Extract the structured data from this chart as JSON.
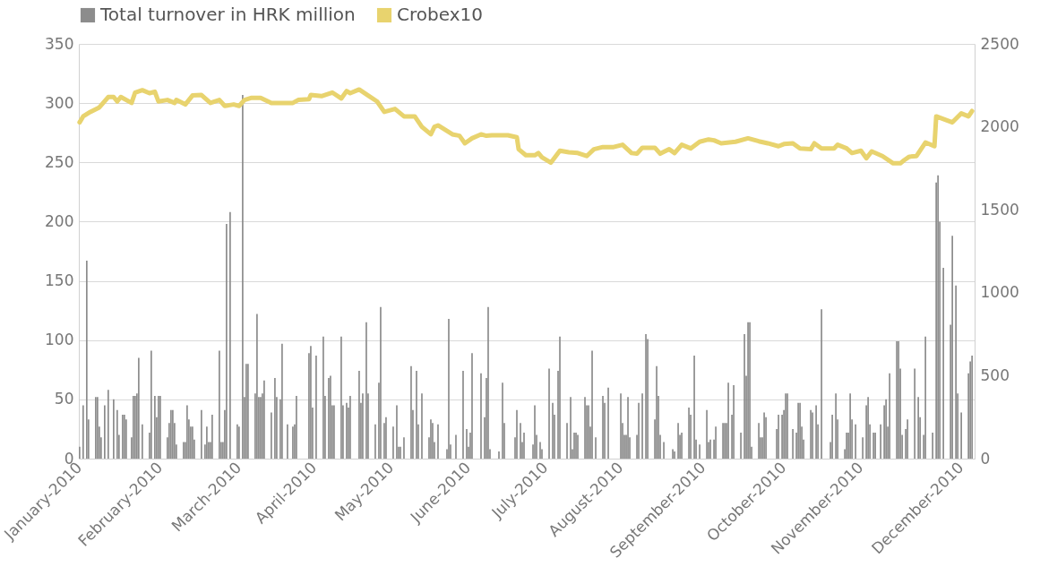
{
  "chart_data": {
    "type": "bar",
    "categories": [
      "January-2010",
      null,
      null,
      null,
      null,
      null,
      null,
      null,
      null,
      null,
      null,
      null,
      null,
      null,
      null,
      null,
      null,
      null,
      null,
      null,
      null,
      null,
      null,
      null,
      null,
      null,
      null,
      null,
      null,
      null,
      null,
      null,
      null,
      null,
      null,
      null,
      null,
      null,
      null,
      null,
      null,
      null,
      null,
      null,
      null,
      "February-2010",
      null,
      null,
      null,
      null,
      null,
      null,
      null,
      null,
      null,
      null,
      null,
      null,
      null,
      null,
      null,
      null,
      null,
      null,
      null,
      null,
      null,
      null,
      null,
      null,
      null,
      null,
      null,
      null,
      null,
      null,
      null,
      null,
      null,
      null,
      null,
      null,
      null,
      null,
      null,
      null,
      null,
      null,
      null,
      "March-2010",
      null,
      null,
      null,
      null,
      null,
      null,
      null,
      null,
      null,
      null,
      null,
      null,
      null,
      null,
      null,
      null,
      null,
      null,
      null,
      null,
      null,
      null,
      null,
      null,
      null,
      null,
      null,
      null,
      null,
      null,
      null,
      null,
      null,
      null,
      null,
      null,
      null,
      null,
      null,
      null,
      null,
      "April-2010",
      null,
      null,
      null,
      null,
      null,
      null,
      null,
      null,
      null,
      null,
      null,
      null,
      null,
      null,
      null,
      null,
      null,
      null,
      null,
      null,
      null,
      null,
      null,
      null,
      null,
      null,
      null,
      null,
      null,
      null,
      null,
      null,
      null,
      null,
      null,
      null,
      null,
      null,
      null,
      null,
      null,
      null,
      "May-2010",
      null,
      null,
      null,
      null,
      null,
      null,
      null,
      null,
      null,
      null,
      null,
      null,
      null,
      null,
      null,
      null,
      null,
      null,
      null,
      null,
      null,
      null,
      null,
      null,
      null,
      null,
      null,
      null,
      null,
      null,
      null,
      null,
      null,
      null,
      null,
      null,
      null,
      null,
      null,
      null,
      null,
      null,
      "June-2010",
      null,
      null,
      null,
      null,
      null,
      null,
      null,
      null,
      null,
      null,
      null,
      null,
      null,
      null,
      null,
      null,
      null,
      null,
      null,
      null,
      null,
      null,
      null,
      null,
      null,
      null,
      null,
      null,
      null,
      null,
      null,
      null,
      null,
      null,
      null,
      null,
      null,
      null,
      null,
      null,
      null,
      null,
      "July-2010",
      null,
      null,
      null,
      null,
      null,
      null,
      null,
      null,
      null,
      null,
      null,
      null,
      null,
      null,
      null,
      null,
      null,
      null,
      null,
      null,
      null,
      null,
      null,
      null,
      null,
      null,
      null,
      null,
      null,
      null,
      null,
      null,
      null,
      null,
      null,
      null,
      null,
      null,
      null,
      null,
      null,
      "August-2010",
      null,
      null,
      null,
      null,
      null,
      null,
      null,
      null,
      null,
      null,
      null,
      null,
      null,
      null,
      null,
      null,
      null,
      null,
      null,
      null,
      null,
      null,
      null,
      null,
      null,
      null,
      null,
      null,
      null,
      null,
      null,
      null,
      null,
      null,
      null,
      null,
      null,
      null,
      null,
      null,
      null,
      null,
      null,
      null,
      null,
      "September-2010",
      null,
      null,
      null,
      null,
      null,
      null,
      null,
      null,
      null,
      null,
      null,
      null,
      null,
      null,
      null,
      null,
      null,
      null,
      null,
      null,
      null,
      null,
      null,
      null,
      null,
      null,
      null,
      null,
      null,
      null,
      null,
      null,
      null,
      null,
      null,
      null,
      null,
      null,
      null,
      null,
      null,
      null,
      null,
      null,
      "October-2010",
      null,
      null,
      null,
      null,
      null,
      null,
      null,
      null,
      null,
      null,
      null,
      null,
      null,
      null,
      null,
      null,
      null,
      null,
      null,
      null,
      null,
      null,
      null,
      null,
      null,
      null,
      null,
      null,
      null,
      null,
      null,
      null,
      null,
      null,
      null,
      null,
      null,
      null,
      null,
      null,
      null,
      null,
      "November-2010",
      null,
      null,
      null,
      null,
      null,
      null,
      null,
      null,
      null,
      null,
      null,
      null,
      null,
      null,
      null,
      null,
      null,
      null,
      null,
      null,
      null,
      null,
      null,
      null,
      null,
      null,
      null,
      null,
      null,
      null,
      null,
      null,
      null,
      null,
      null,
      null,
      null,
      null,
      null,
      null,
      null,
      null,
      null,
      null,
      null,
      null,
      null,
      null,
      null,
      null,
      null,
      null,
      null,
      null,
      null,
      "December-2010",
      null,
      null,
      null,
      null,
      null,
      null,
      null
    ],
    "ylim": [
      0,
      350
    ],
    "yticks": [
      0,
      50,
      100,
      150,
      200,
      250,
      300,
      350
    ],
    "y2lim": [
      0,
      2500
    ],
    "y2ticks": [
      0,
      500,
      1000,
      1500,
      2000,
      2500
    ],
    "grid": "y",
    "legend": "top left",
    "series": [
      {
        "name": "Total turnover in HRK million",
        "color": "#8c8c8c",
        "values": [
          10,
          null,
          45,
          null,
          167,
          33,
          null,
          null,
          null,
          52,
          52,
          27,
          18,
          null,
          45,
          null,
          58,
          null,
          null,
          50,
          null,
          41,
          20,
          null,
          37,
          37,
          33,
          null,
          null,
          18,
          53,
          53,
          55,
          85,
          null,
          29,
          null,
          null,
          null,
          22,
          91,
          null,
          53,
          35,
          53,
          53,
          null,
          null,
          null,
          18,
          30,
          41,
          41,
          30,
          12,
          null,
          null,
          null,
          14,
          14,
          45,
          33,
          27,
          27,
          16,
          null,
          null,
          null,
          41,
          null,
          12,
          27,
          14,
          14,
          37,
          null,
          null,
          null,
          91,
          14,
          14,
          41,
          198,
          null,
          208,
          null,
          null,
          null,
          29,
          27,
          null,
          307,
          52,
          80,
          80,
          null,
          null,
          null,
          55,
          122,
          52,
          52,
          55,
          66,
          null,
          null,
          null,
          39,
          null,
          68,
          52,
          null,
          50,
          97,
          null,
          null,
          29,
          null,
          null,
          27,
          29,
          53,
          null,
          null,
          null,
          null,
          null,
          null,
          89,
          95,
          43,
          null,
          87,
          null,
          null,
          null,
          103,
          53,
          null,
          68,
          70,
          45,
          45,
          null,
          null,
          null,
          103,
          45,
          null,
          47,
          43,
          53,
          null,
          null,
          null,
          null,
          74,
          47,
          55,
          null,
          115,
          55,
          null,
          null,
          null,
          29,
          null,
          64,
          128,
          null,
          30,
          35,
          null,
          null,
          null,
          27,
          null,
          45,
          10,
          10,
          null,
          18,
          null,
          null,
          null,
          78,
          41,
          null,
          74,
          29,
          null,
          55,
          null,
          null,
          null,
          18,
          33,
          30,
          14,
          null,
          29,
          null,
          null,
          null,
          null,
          8,
          118,
          12,
          null,
          null,
          20,
          null,
          null,
          null,
          74,
          null,
          25,
          10,
          22,
          89,
          null,
          null,
          null,
          null,
          72,
          null,
          35,
          68,
          128,
          8,
          null,
          null,
          null,
          null,
          6,
          null,
          64,
          30,
          null,
          null,
          null,
          null,
          null,
          18,
          41,
          null,
          30,
          14,
          22,
          null,
          null,
          null,
          null,
          12,
          45,
          20,
          null,
          14,
          8,
          null,
          null,
          null,
          76,
          null,
          47,
          37,
          null,
          74,
          103,
          null,
          null,
          null,
          30,
          null,
          52,
          8,
          22,
          22,
          20,
          null,
          null,
          null,
          52,
          45,
          45,
          27,
          91,
          null,
          18,
          null,
          null,
          null,
          53,
          47,
          null,
          60,
          null,
          null,
          null,
          null,
          null,
          null,
          55,
          30,
          20,
          20,
          52,
          18,
          null,
          null,
          null,
          20,
          47,
          null,
          55,
          null,
          105,
          101,
          null,
          null,
          null,
          33,
          78,
          53,
          20,
          null,
          14,
          null,
          null,
          null,
          null,
          8,
          6,
          null,
          30,
          20,
          22,
          null,
          null,
          null,
          43,
          37,
          null,
          87,
          16,
          null,
          12,
          null,
          null,
          null,
          41,
          14,
          16,
          null,
          16,
          27,
          null,
          null,
          null,
          30,
          30,
          30,
          64,
          null,
          37,
          62,
          null,
          null,
          null,
          22,
          null,
          105,
          70,
          115,
          115,
          10,
          null,
          null,
          null,
          30,
          18,
          18,
          39,
          35,
          null,
          null,
          null,
          null,
          null,
          25,
          37,
          null,
          37,
          41,
          55,
          55,
          null,
          null,
          25,
          null,
          22,
          47,
          47,
          27,
          16,
          null,
          null,
          null,
          41,
          39,
          null,
          45,
          29,
          null,
          126,
          null,
          null,
          null,
          null,
          14,
          37,
          null,
          55,
          33,
          null,
          null,
          null,
          8,
          22,
          22,
          55,
          33,
          null,
          29,
          null,
          null,
          null,
          18,
          null,
          45,
          52,
          29,
          null,
          22,
          22,
          null,
          null,
          29,
          null,
          45,
          50,
          27,
          72,
          null,
          null,
          null,
          99,
          99,
          76,
          20,
          null,
          25,
          33,
          null,
          null,
          null,
          76,
          null,
          52,
          35,
          null,
          20,
          103,
          null,
          null,
          null,
          22,
          null,
          233,
          239,
          200,
          null,
          161,
          null,
          null,
          null,
          113,
          188,
          null,
          146,
          55,
          null,
          39,
          null,
          null,
          null,
          72,
          82,
          87,
          null
        ]
      },
      {
        "name": "Crobex10",
        "type": "line",
        "axis": "y2",
        "line_style": "solid",
        "color": "#e8d36e",
        "values": [
          2027,
          null,
          2063,
          null,
          null,
          null,
          2090,
          null,
          null,
          null,
          null,
          2117,
          null,
          null,
          null,
          null,
          2180,
          null,
          null,
          2180,
          null,
          2153,
          null,
          2180,
          null,
          null,
          null,
          null,
          null,
          2144,
          null,
          2207,
          null,
          null,
          null,
          2221,
          null,
          null,
          null,
          2203,
          null,
          null,
          2212,
          null,
          2153,
          null,
          null,
          null,
          null,
          2162,
          null,
          null,
          null,
          2144,
          2162,
          null,
          null,
          null,
          null,
          2135,
          null,
          null,
          null,
          2189,
          null,
          null,
          null,
          null,
          2192,
          null,
          null,
          null,
          null,
          2144,
          null,
          null,
          null,
          null,
          2162,
          null,
          null,
          2126,
          null,
          null,
          null,
          null,
          2135,
          null,
          null,
          2126,
          null,
          null,
          2162,
          null,
          null,
          null,
          2175,
          null,
          null,
          null,
          null,
          2175,
          null,
          null,
          null,
          null,
          null,
          2144,
          null,
          null,
          null,
          2144,
          null,
          null,
          null,
          null,
          null,
          null,
          null,
          2144,
          null,
          null,
          2162,
          null,
          null,
          null,
          null,
          null,
          2167,
          2192,
          null,
          null,
          null,
          null,
          null,
          2185,
          null,
          null,
          null,
          null,
          null,
          2207,
          null,
          null,
          null,
          null,
          2171,
          null,
          null,
          2216,
          null,
          2203,
          null,
          null,
          null,
          null,
          2225,
          null,
          null,
          null,
          null,
          2189,
          null,
          null,
          null,
          null,
          2153,
          null,
          null,
          null,
          2090,
          null,
          null,
          null,
          null,
          null,
          2108,
          null,
          null,
          null,
          null,
          2063,
          null,
          null,
          null,
          null,
          null,
          2063,
          null,
          null,
          null,
          2000,
          null,
          null,
          null,
          null,
          1955,
          null,
          2000,
          null,
          2009,
          null,
          null,
          null,
          1982,
          null,
          null,
          null,
          1955,
          null,
          null,
          null,
          1946,
          null,
          null,
          1901,
          null,
          null,
          null,
          1931,
          null,
          null,
          null,
          null,
          1955,
          null,
          null,
          1946,
          null,
          null,
          1949,
          null,
          null,
          null,
          null,
          null,
          null,
          null,
          null,
          1949,
          null,
          null,
          null,
          null,
          1937,
          1865,
          null,
          null,
          null,
          1829,
          null,
          null,
          null,
          null,
          1829,
          null,
          1842,
          null,
          1816,
          null,
          null,
          null,
          null,
          1784,
          null,
          null,
          null,
          null,
          1856,
          null,
          null,
          null,
          null,
          1847,
          null,
          null,
          null,
          null,
          1842,
          null,
          null,
          null,
          null,
          1824,
          null,
          null,
          null,
          1865,
          null,
          null,
          null,
          null,
          1878,
          null,
          null,
          null,
          null,
          null,
          1878,
          null,
          null,
          null,
          null,
          1892,
          null,
          null,
          null,
          null,
          1842,
          null,
          null,
          1838,
          null,
          null,
          1874,
          null,
          null,
          null,
          null,
          null,
          null,
          1874,
          null,
          null,
          1838,
          null,
          null,
          null,
          null,
          1865,
          null,
          null,
          1842,
          null,
          null,
          null,
          1892,
          null,
          null,
          null,
          null,
          1870,
          null,
          null,
          null,
          null,
          1910,
          null,
          null,
          null,
          null,
          1924,
          null,
          null,
          1919,
          null,
          null,
          null,
          1901,
          null,
          null,
          null,
          null,
          null,
          null,
          null,
          1910,
          null,
          null,
          null,
          null,
          null,
          null,
          1931,
          null,
          null,
          null,
          null,
          null,
          1913,
          null,
          null,
          null,
          null,
          1901,
          null,
          null,
          null,
          null,
          null,
          1883,
          null,
          null,
          1896,
          null,
          null,
          null,
          null,
          1901,
          null,
          null,
          null,
          1870,
          null,
          null,
          null,
          null,
          null,
          1865,
          null,
          1901,
          null,
          null,
          null,
          1870,
          null,
          null,
          null,
          null,
          null,
          null,
          1870,
          null,
          1892,
          null,
          null,
          null,
          null,
          1870,
          null,
          null,
          1842,
          null,
          null,
          null,
          null,
          1856,
          null,
          null,
          1811,
          null,
          null,
          1852,
          null,
          null,
          null,
          null,
          null,
          1824,
          null,
          null,
          null,
          null,
          null,
          1780,
          null,
          null,
          null,
          1780,
          null,
          1798,
          null,
          null,
          1820,
          null,
          null,
          null,
          1824,
          null,
          null,
          null,
          null,
          1906,
          null,
          null,
          null,
          null,
          1883,
          2063,
          null,
          null,
          2051,
          null,
          null,
          null,
          null,
          null,
          2027,
          null,
          null,
          null,
          null,
          2081,
          null,
          null,
          null,
          2063,
          null,
          2095,
          null
        ]
      }
    ]
  }
}
